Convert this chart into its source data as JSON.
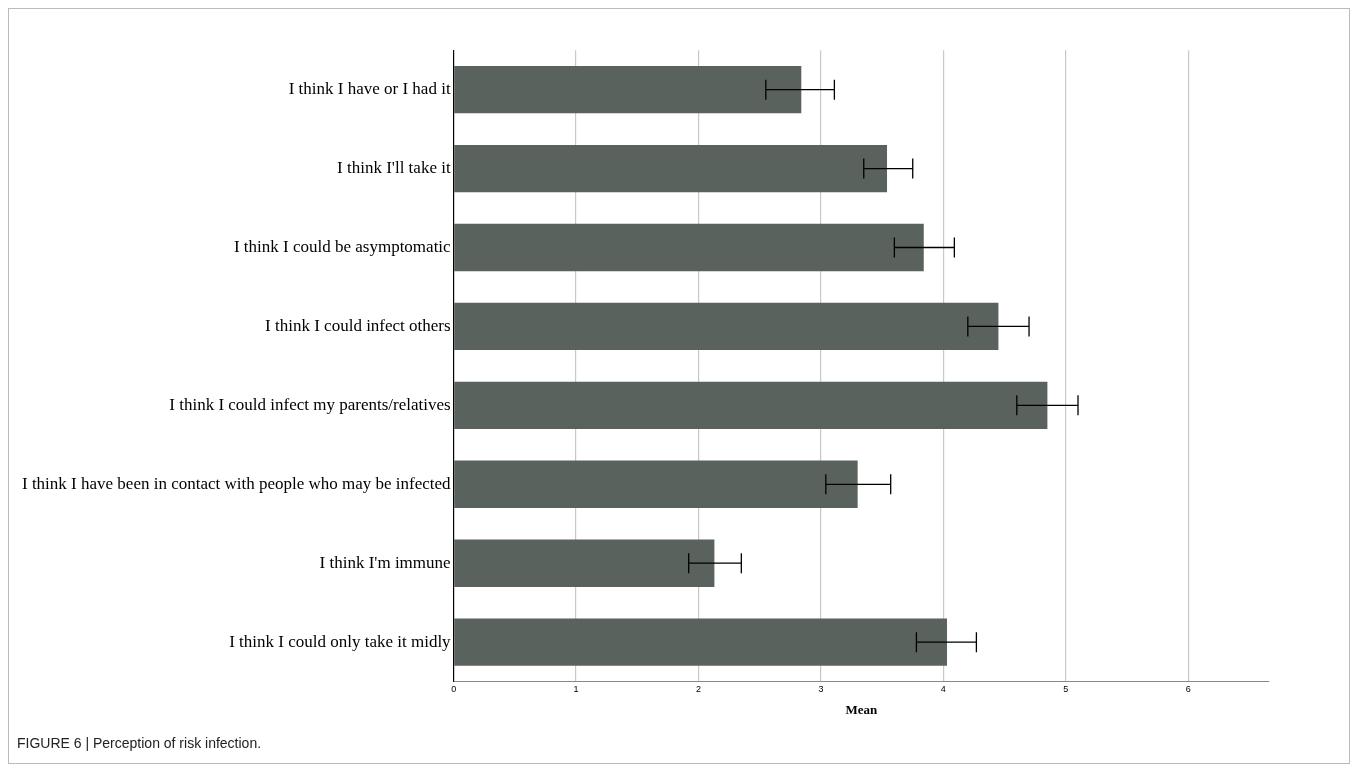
{
  "chart_data": {
    "type": "bar",
    "orientation": "horizontal",
    "xlabel": "Mean",
    "categories": [
      "I think I have or I had it",
      "I think I'll take it",
      "I think I could be asymptomatic",
      "I think I could infect others",
      "I think I could infect my parents/relatives",
      "I think I have been in contact with people who may be infected",
      "I think I'm immune",
      "I think I could only take it midly"
    ],
    "values": [
      2.84,
      3.54,
      3.84,
      4.45,
      4.85,
      3.3,
      2.13,
      4.03
    ],
    "errors": [
      [
        2.55,
        3.11
      ],
      [
        3.35,
        3.75
      ],
      [
        3.6,
        4.09
      ],
      [
        4.2,
        4.7
      ],
      [
        4.6,
        5.1
      ],
      [
        3.04,
        3.57
      ],
      [
        1.92,
        2.35
      ],
      [
        3.78,
        4.27
      ]
    ],
    "color": "#5a625d",
    "xlim": [
      0,
      6.66
    ],
    "xticks": [
      0,
      1,
      2,
      3,
      4,
      5,
      6
    ],
    "grid": "x",
    "annotations": [
      "FIGURE 6 | Perception of risk infection."
    ]
  }
}
